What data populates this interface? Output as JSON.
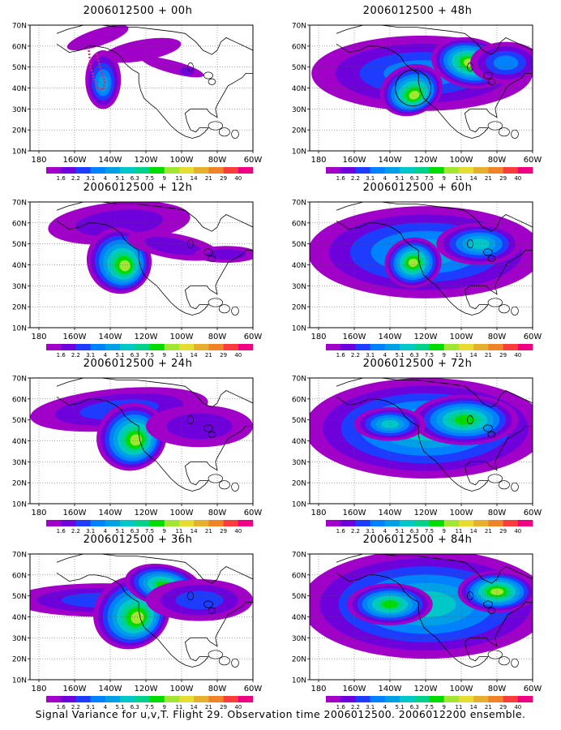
{
  "panels": [
    {
      "title": "2006012500 + 00h",
      "hours": 0
    },
    {
      "title": "2006012500 + 48h",
      "hours": 48
    },
    {
      "title": "2006012500 + 12h",
      "hours": 12
    },
    {
      "title": "2006012500 + 60h",
      "hours": 60
    },
    {
      "title": "2006012500 + 24h",
      "hours": 24
    },
    {
      "title": "2006012500 + 72h",
      "hours": 72
    },
    {
      "title": "2006012500 + 36h",
      "hours": 36
    },
    {
      "title": "2006012500 + 84h",
      "hours": 84
    }
  ],
  "lat_labels": [
    "70N",
    "60N",
    "50N",
    "40N",
    "30N",
    "20N",
    "10N"
  ],
  "lon_labels": [
    "180",
    "160W",
    "140W",
    "120W",
    "100W",
    "80W",
    "60W"
  ],
  "colorbar": {
    "labels": [
      "1.6",
      "2.2",
      "3.1",
      "4",
      "5.1",
      "6.3",
      "7.5",
      "9",
      "11",
      "14",
      "21",
      "29",
      "40"
    ],
    "colors": [
      "#a000c8",
      "#6e00dc",
      "#1e3cff",
      "#0082ff",
      "#00a0e6",
      "#00c8c8",
      "#00d28c",
      "#00dc00",
      "#a0e632",
      "#e6dc32",
      "#e6af2d",
      "#f08228",
      "#fa3c3c",
      "#f00082"
    ]
  },
  "footer": "Signal Variance for u,v,T. Flight 29. Observation time 2006012500. 2006012200 ensemble.",
  "icons": {
    "circle_marker": "observation-region-circle-icon",
    "dotted_track": "flight-track-icon"
  }
}
